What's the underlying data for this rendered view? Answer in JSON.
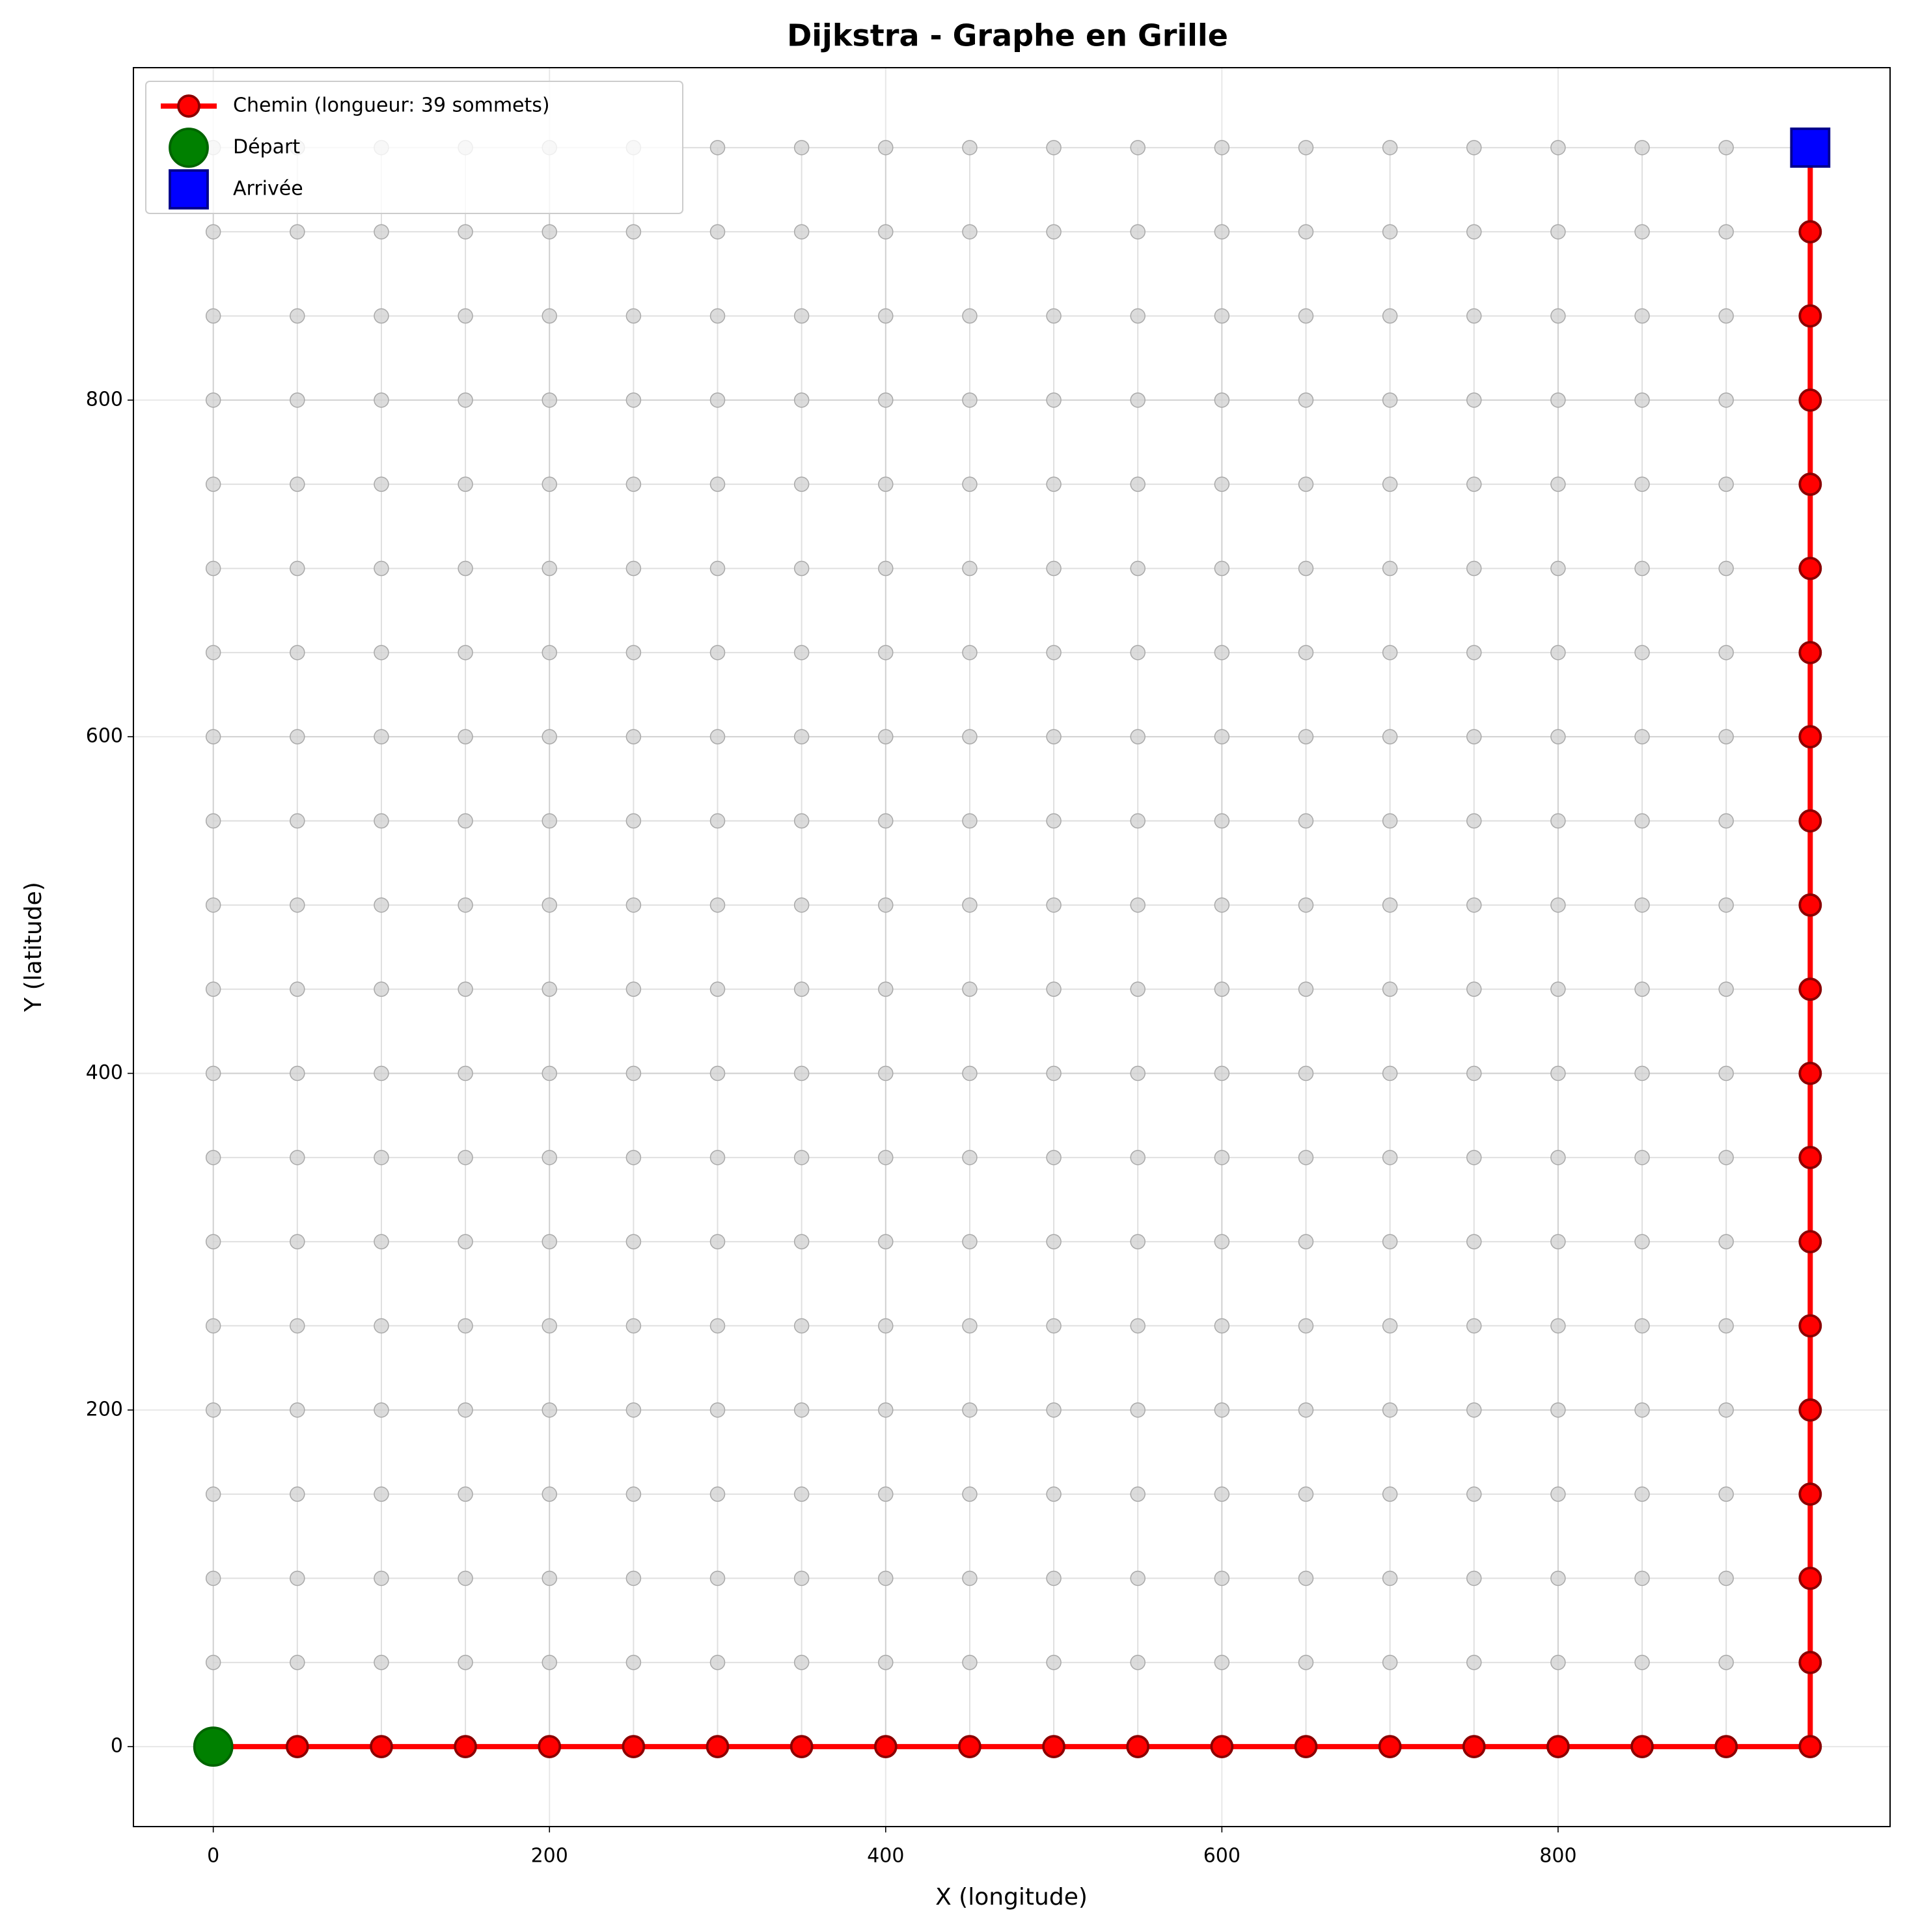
{
  "chart_data": {
    "type": "line",
    "title": "Dijkstra - Graphe en Grille",
    "x_label": "X (longitude)",
    "y_label": "Y (latitude)",
    "xlim": [
      -47.5,
      997.5
    ],
    "ylim": [
      -47.5,
      997.5
    ],
    "xticks": [
      0,
      200,
      400,
      600,
      800
    ],
    "yticks": [
      0,
      200,
      400,
      600,
      800
    ],
    "grid": true,
    "legend": "upper left",
    "nodes": {
      "color": "#d3d3d3",
      "x": [
        0,
        50,
        100,
        150,
        200,
        250,
        300,
        350,
        400,
        450,
        500,
        550,
        600,
        650,
        700,
        750,
        800,
        850,
        900,
        950
      ],
      "y": [
        0,
        50,
        100,
        150,
        200,
        250,
        300,
        350,
        400,
        450,
        500,
        550,
        600,
        650,
        700,
        750,
        800,
        850,
        900,
        950
      ]
    },
    "series": [
      {
        "name": "Chemin (longueur: 39 sommets)",
        "color": "#ff0000",
        "marker": "circle",
        "x": [
          0,
          50,
          100,
          150,
          200,
          250,
          300,
          350,
          400,
          450,
          500,
          550,
          600,
          650,
          700,
          750,
          800,
          850,
          900,
          950,
          950,
          950,
          950,
          950,
          950,
          950,
          950,
          950,
          950,
          950,
          950,
          950,
          950,
          950,
          950,
          950,
          950,
          950,
          950
        ],
        "values": [
          0,
          0,
          0,
          0,
          0,
          0,
          0,
          0,
          0,
          0,
          0,
          0,
          0,
          0,
          0,
          0,
          0,
          0,
          0,
          0,
          50,
          100,
          150,
          200,
          250,
          300,
          350,
          400,
          450,
          500,
          550,
          600,
          650,
          700,
          750,
          800,
          850,
          900,
          950
        ]
      },
      {
        "name": "Départ",
        "color": "#008000",
        "marker": "circle",
        "x": [
          0
        ],
        "values": [
          0
        ]
      },
      {
        "name": "Arrivée",
        "color": "#0000ff",
        "marker": "square",
        "x": [
          950
        ],
        "values": [
          950
        ]
      }
    ]
  }
}
